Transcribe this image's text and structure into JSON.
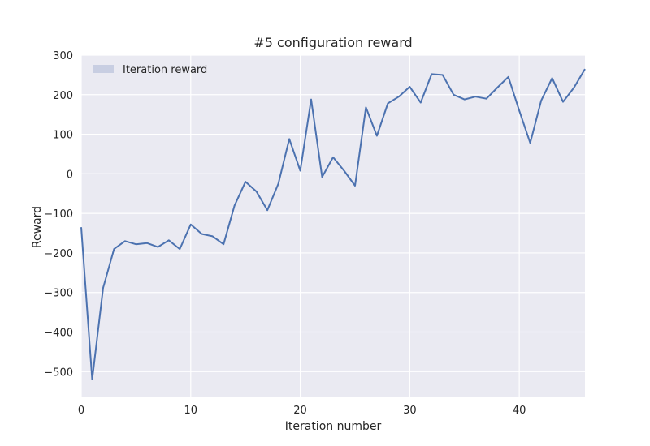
{
  "chart_data": {
    "type": "line",
    "title": "#5 configuration reward",
    "xlabel": "Iteration number",
    "ylabel": "Reward",
    "xlim": [
      0,
      46
    ],
    "ylim": [
      -565,
      300
    ],
    "xticks": [
      0,
      10,
      20,
      30,
      40
    ],
    "yticks": [
      300,
      200,
      100,
      0,
      -100,
      -200,
      -300,
      -400,
      -500
    ],
    "ytick_labels": [
      "300",
      "200",
      "100",
      "0",
      "−100",
      "−200",
      "−300",
      "−400",
      "−500"
    ],
    "grid": true,
    "legend_position": "top-left",
    "series": [
      {
        "name": "Iteration reward",
        "color": "#4c72b0",
        "legend_color": "#c8cee2",
        "x": [
          0,
          1,
          2,
          3,
          4,
          5,
          6,
          7,
          8,
          9,
          10,
          11,
          12,
          13,
          14,
          15,
          16,
          17,
          18,
          19,
          20,
          21,
          22,
          23,
          24,
          25,
          26,
          27,
          28,
          29,
          30,
          31,
          32,
          33,
          34,
          35,
          36,
          37,
          38,
          39,
          40,
          41,
          42,
          43,
          44,
          45,
          46
        ],
        "values": [
          -135,
          -520,
          -288,
          -190,
          -170,
          -178,
          -175,
          -185,
          -168,
          -190,
          -128,
          -152,
          -158,
          -178,
          -80,
          -20,
          -45,
          -92,
          -25,
          88,
          8,
          188,
          -8,
          42,
          8,
          -30,
          168,
          96,
          178,
          195,
          220,
          180,
          252,
          250,
          200,
          188,
          195,
          190,
          218,
          245,
          160,
          78,
          185,
          242,
          182,
          218,
          265
        ]
      }
    ],
    "colors": {
      "plot_background": "#eaeaf2",
      "grid": "#ffffff",
      "text": "#262626"
    }
  }
}
